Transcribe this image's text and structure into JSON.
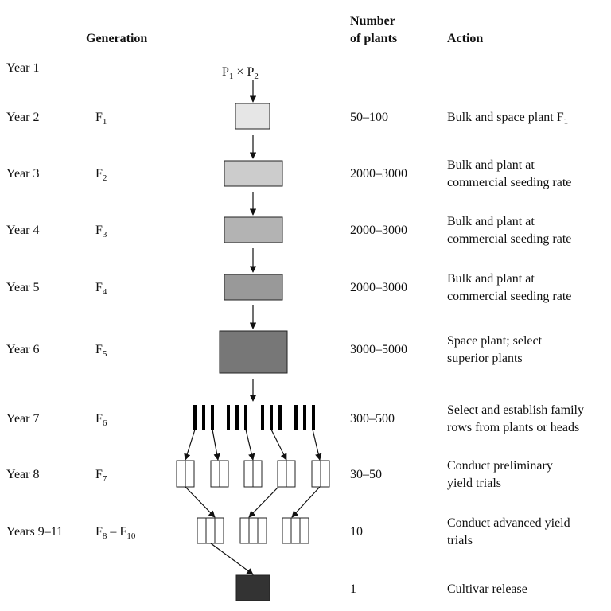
{
  "headers": {
    "generation": "Generation",
    "number_line1": "Number",
    "number_line2": "of plants",
    "action": "Action"
  },
  "cross": {
    "p1": "P",
    "p1_sub": "1",
    "times": " × ",
    "p2": "P",
    "p2_sub": "2"
  },
  "rows": [
    {
      "year": "Year 1",
      "gen": "",
      "gen_sub": "",
      "number": "",
      "action1": "",
      "action1_sub": "",
      "action2": ""
    },
    {
      "year": "Year 2",
      "gen": "F",
      "gen_sub": "1",
      "number": "50–100",
      "action1": "Bulk and space plant F",
      "action1_sub": "1",
      "action2": ""
    },
    {
      "year": "Year 3",
      "gen": "F",
      "gen_sub": "2",
      "number": "2000–3000",
      "action1": "Bulk and plant at",
      "action1_sub": "",
      "action2": "commercial seeding rate"
    },
    {
      "year": "Year 4",
      "gen": "F",
      "gen_sub": "3",
      "number": "2000–3000",
      "action1": "Bulk and plant at",
      "action1_sub": "",
      "action2": "commercial seeding rate"
    },
    {
      "year": "Year 5",
      "gen": "F",
      "gen_sub": "4",
      "number": "2000–3000",
      "action1": "Bulk and plant at",
      "action1_sub": "",
      "action2": "commercial seeding rate"
    },
    {
      "year": "Year 6",
      "gen": "F",
      "gen_sub": "5",
      "number": "3000–5000",
      "action1": "Space plant; select",
      "action1_sub": "",
      "action2": "superior plants"
    },
    {
      "year": "Year 7",
      "gen": "F",
      "gen_sub": "6",
      "number": "300–500",
      "action1": "Select and establish family",
      "action1_sub": "",
      "action2": "rows from plants or heads"
    },
    {
      "year": "Year 8",
      "gen": "F",
      "gen_sub": "7",
      "number": "30–50",
      "action1": "Conduct preliminary",
      "action1_sub": "",
      "action2": "yield trials"
    },
    {
      "year": "Years 9–11",
      "gen": "F",
      "gen_sub": "8",
      "gen2": " – F",
      "gen2_sub": "10",
      "number": "10",
      "action1": "Conduct advanced yield",
      "action1_sub": "",
      "action2": "trials"
    },
    {
      "year": "",
      "gen": "",
      "gen_sub": "",
      "number": "1",
      "action1": "Cultivar release",
      "action1_sub": "",
      "action2": ""
    }
  ],
  "colors": {
    "year2": "#e6e6e6",
    "year3": "#cccccc",
    "year4": "#b3b3b3",
    "year5": "#999999",
    "year6": "#777777",
    "release": "#333333"
  }
}
